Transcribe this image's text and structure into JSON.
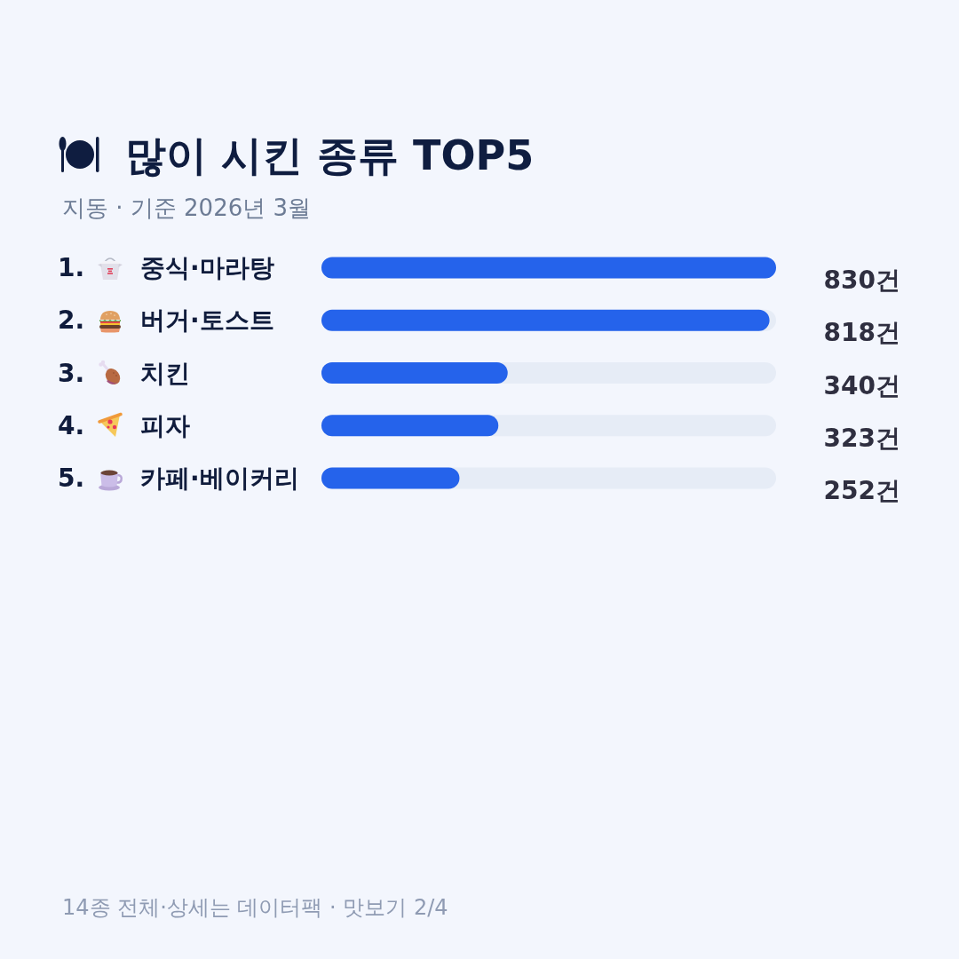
{
  "chart_data": {
    "type": "bar",
    "orientation": "horizontal",
    "title": "많이 시킨 종류 TOP5",
    "subtitle": "지동 · 기준 2026년 3월",
    "categories": [
      "1. 중식·마라탕",
      "2. 버거·토스트",
      "3. 치킨",
      "4. 피자",
      "5. 카페·베이커리"
    ],
    "values": [
      830,
      818,
      340,
      323,
      252
    ],
    "color": "#2563eb",
    "value_labels": [
      "830건",
      "818건",
      "340건",
      "323건",
      "252건"
    ],
    "annotations": [
      "14종 전체·상세는 데이터팩 · 맛보기 2/4"
    ]
  }
}
